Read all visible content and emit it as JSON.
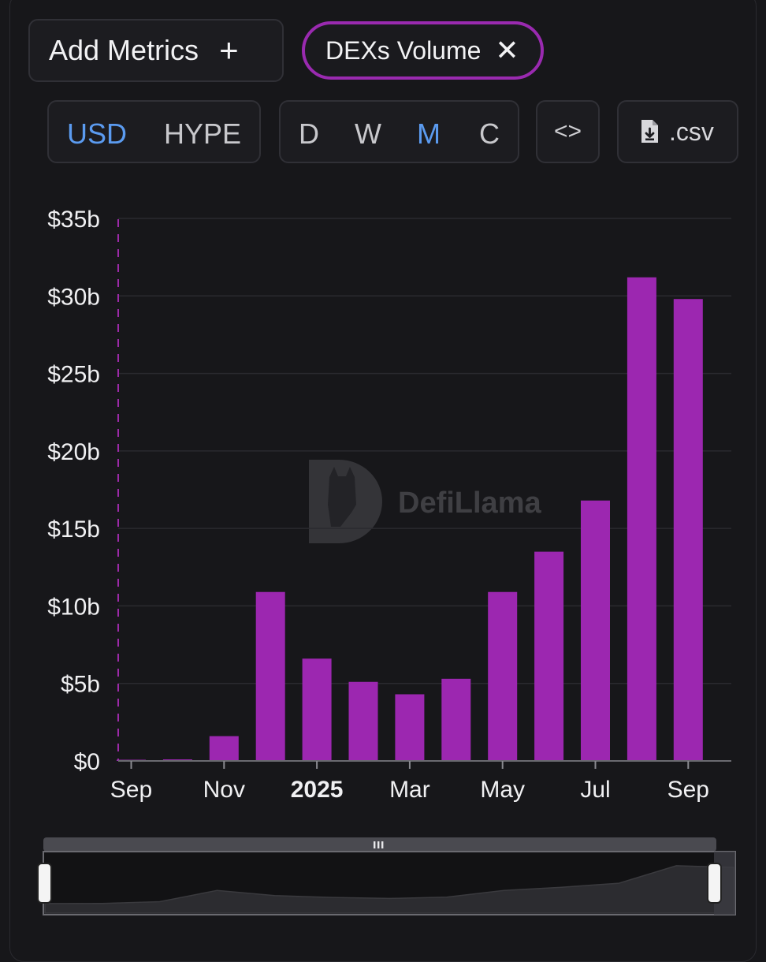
{
  "controls": {
    "add_metrics_label": "Add Metrics",
    "add_icon": "+",
    "metric_chip_label": "DEXs Volume",
    "close_icon": "✕",
    "units": [
      "USD",
      "HYPE"
    ],
    "active_unit": "USD",
    "periods": [
      "D",
      "W",
      "M",
      "C"
    ],
    "active_period": "M",
    "embed_label": "<>",
    "csv_label": ".csv",
    "accent_color": "#5b9bf0",
    "chip_border_color": "#9a2ab0"
  },
  "watermark": {
    "text": "DefiLlama"
  },
  "chart_data": {
    "type": "bar",
    "bar_color": "#9c27b0",
    "y_ticks": [
      "$0",
      "$5b",
      "$10b",
      "$15b",
      "$20b",
      "$25b",
      "$30b",
      "$35b"
    ],
    "ylim": [
      0,
      35
    ],
    "y_unit": "billion USD",
    "x_tick_labels": [
      "Sep",
      "Nov",
      "2025",
      "Mar",
      "May",
      "Jul",
      "Sep"
    ],
    "categories": [
      "2024-09",
      "2024-10",
      "2024-11",
      "2024-12",
      "2025-01",
      "2025-02",
      "2025-03",
      "2025-04",
      "2025-05",
      "2025-06",
      "2025-07",
      "2025-08",
      "2025-09"
    ],
    "values": [
      0.05,
      0.1,
      1.6,
      10.9,
      6.6,
      5.1,
      4.3,
      5.3,
      10.9,
      13.5,
      16.8,
      31.2,
      29.8
    ],
    "grid": true
  }
}
